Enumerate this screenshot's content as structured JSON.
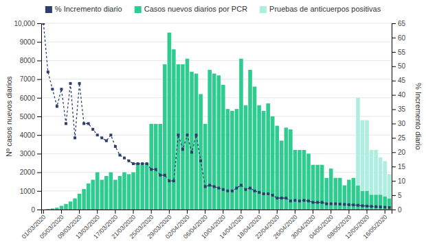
{
  "chart_data": {
    "type": "bar",
    "stacked": true,
    "grid": true,
    "legend": "top",
    "ylabel": "Nº casos nuevos diarios",
    "y2label": "% Incremento diario",
    "categories": [
      "01/03/2020",
      null,
      null,
      null,
      "05/03/2020",
      null,
      null,
      null,
      "09/03/2020",
      null,
      null,
      null,
      "13/03/2020",
      null,
      null,
      null,
      "17/03/2020",
      null,
      null,
      null,
      "21/03/2020",
      null,
      null,
      null,
      "25/03/2020",
      null,
      null,
      null,
      "29/03/2020",
      null,
      null,
      null,
      "02/04/2020",
      null,
      null,
      null,
      "06/04/2020",
      null,
      null,
      null,
      "10/04/2020",
      null,
      null,
      null,
      "14/04/2020",
      null,
      null,
      null,
      "18/04/2020",
      null,
      null,
      null,
      "22/04/2020",
      null,
      null,
      null,
      "26/04/2020",
      null,
      null,
      null,
      "30/04/2020",
      null,
      null,
      null,
      "04/05/2020",
      null,
      null,
      null,
      "08/05/2020",
      null,
      null,
      null,
      "12/05/2020",
      null,
      null,
      null,
      "16/05/2020",
      null
    ],
    "series": [
      {
        "name": "% Incremento diario",
        "type": "line",
        "axis": "y2",
        "color": "#2c3e6e",
        "marker": "square",
        "line_style": "dashed",
        "values": [
          65,
          48,
          42,
          36,
          42,
          30,
          44,
          25,
          44,
          30,
          30,
          28,
          26,
          25,
          24,
          26,
          22,
          19,
          18,
          17,
          16,
          16,
          16,
          16,
          14,
          14,
          12,
          12,
          10,
          10,
          26,
          21,
          26,
          20,
          26,
          17,
          8,
          8.5,
          8,
          7.5,
          7,
          6.5,
          6.5,
          7.5,
          8.5,
          7,
          7.5,
          6.5,
          6,
          5.5,
          5.5,
          5,
          4,
          4,
          4,
          3,
          3.2,
          3,
          3.2,
          3,
          2.5,
          2.5,
          2.5,
          2,
          2,
          2,
          1.9,
          1.8,
          1.7,
          1.6,
          1.5,
          1.3,
          1.2,
          1.1,
          1.0,
          0.9,
          0.8,
          0.7
        ]
      },
      {
        "name": "Casos nuevos diarios por PCR",
        "type": "bar",
        "color": "#2ecc8e",
        "values": [
          0,
          30,
          60,
          100,
          200,
          300,
          430,
          600,
          850,
          1100,
          1400,
          1600,
          2000,
          1600,
          1800,
          2000,
          1600,
          1800,
          2000,
          1900,
          2000,
          2500,
          2400,
          2500,
          4600,
          4600,
          4600,
          7800,
          9500,
          8600,
          7800,
          7800,
          8100,
          7400,
          7300,
          6200,
          4600,
          7500,
          7300,
          7200,
          6700,
          5400,
          5300,
          5400,
          8100,
          5600,
          7500,
          6600,
          5600,
          5300,
          5700,
          5000,
          4500,
          3700,
          4400,
          4300,
          3200,
          3200,
          3200,
          3000,
          2400,
          2400,
          2400,
          1700,
          2200,
          1700,
          1700,
          1300,
          1600,
          1700,
          1300,
          1000,
          1000,
          800,
          800,
          800,
          700,
          600
        ]
      },
      {
        "name": "Pruebas de anticuerpos positivas",
        "type": "bar",
        "color": "#aeeee0",
        "values": [
          0,
          0,
          0,
          0,
          0,
          0,
          0,
          0,
          0,
          0,
          0,
          0,
          0,
          0,
          0,
          0,
          0,
          0,
          0,
          0,
          0,
          0,
          0,
          0,
          0,
          0,
          0,
          0,
          0,
          0,
          0,
          0,
          0,
          0,
          0,
          0,
          0,
          0,
          0,
          0,
          0,
          0,
          0,
          0,
          0,
          0,
          0,
          0,
          0,
          0,
          0,
          0,
          0,
          0,
          0,
          0,
          0,
          0,
          0,
          0,
          0,
          0,
          0,
          0,
          0,
          0,
          0,
          0,
          0,
          0,
          4700,
          3800,
          3800,
          2400,
          2400,
          2000,
          1900,
          1300
        ]
      }
    ],
    "ylim": [
      0,
      10000
    ],
    "yticks": [
      0,
      1000,
      2000,
      3000,
      4000,
      5000,
      6000,
      7000,
      8000,
      9000,
      {
        "value": 10000,
        "label": "10,000"
      }
    ],
    "y2lim": [
      0,
      65
    ],
    "y2ticks": [
      0,
      5,
      10,
      15,
      20,
      25,
      30,
      35,
      40,
      45,
      50,
      55,
      60,
      65
    ]
  }
}
